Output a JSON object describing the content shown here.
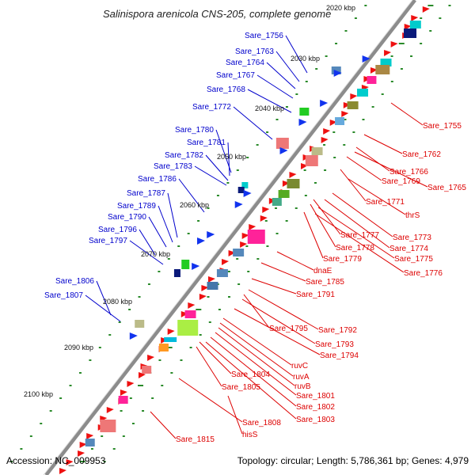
{
  "title": "Salinispora arenicola CNS-205, complete genome",
  "footer": {
    "accession": "Accession: NC_009953",
    "summary": "Topology: circular; Length: 5,786,361 bp; Genes: 4,979"
  },
  "ticks": [
    "2020 kbp",
    "2030 kbp",
    "2040 kbp",
    "2050 kbp",
    "2060 kbp",
    "2070 kbp",
    "2080 kbp",
    "2090 kbp",
    "2100 kbp"
  ],
  "left_labels": [
    "Sare_1756",
    "Sare_1763",
    "Sare_1764",
    "Sare_1767",
    "Sare_1768",
    "Sare_1772",
    "Sare_1780",
    "Sare_1781",
    "Sare_1782",
    "Sare_1783",
    "Sare_1786",
    "Sare_1787",
    "Sare_1789",
    "Sare_1790",
    "Sare_1796",
    "Sare_1797",
    "Sare_1806",
    "Sare_1807"
  ],
  "right_labels": [
    "Sare_1755",
    "Sare_1762",
    "Sare_1766",
    "Sare_1769",
    "Sare_1765",
    "Sare_1771",
    "thrS",
    "Sare_1777",
    "Sare_1773",
    "Sare_1778",
    "Sare_1774",
    "Sare_1779",
    "Sare_1775",
    "dnaE",
    "Sare_1776",
    "Sare_1785",
    "Sare_1791",
    "Sare_1795",
    "Sare_1792",
    "Sare_1793",
    "Sare_1794",
    "ruvC",
    "ruvA",
    "Sare_1804",
    "ruvB",
    "Sare_1805",
    "Sare_1801",
    "Sare_1802",
    "Sare_1803",
    "Sare_1808",
    "hisS",
    "Sare_1815"
  ],
  "colors": {
    "left_label": "#0000cc",
    "right_label": "#dd0000",
    "backbone": "#8c8c8c",
    "tick_dash": "#2a8a2a"
  }
}
